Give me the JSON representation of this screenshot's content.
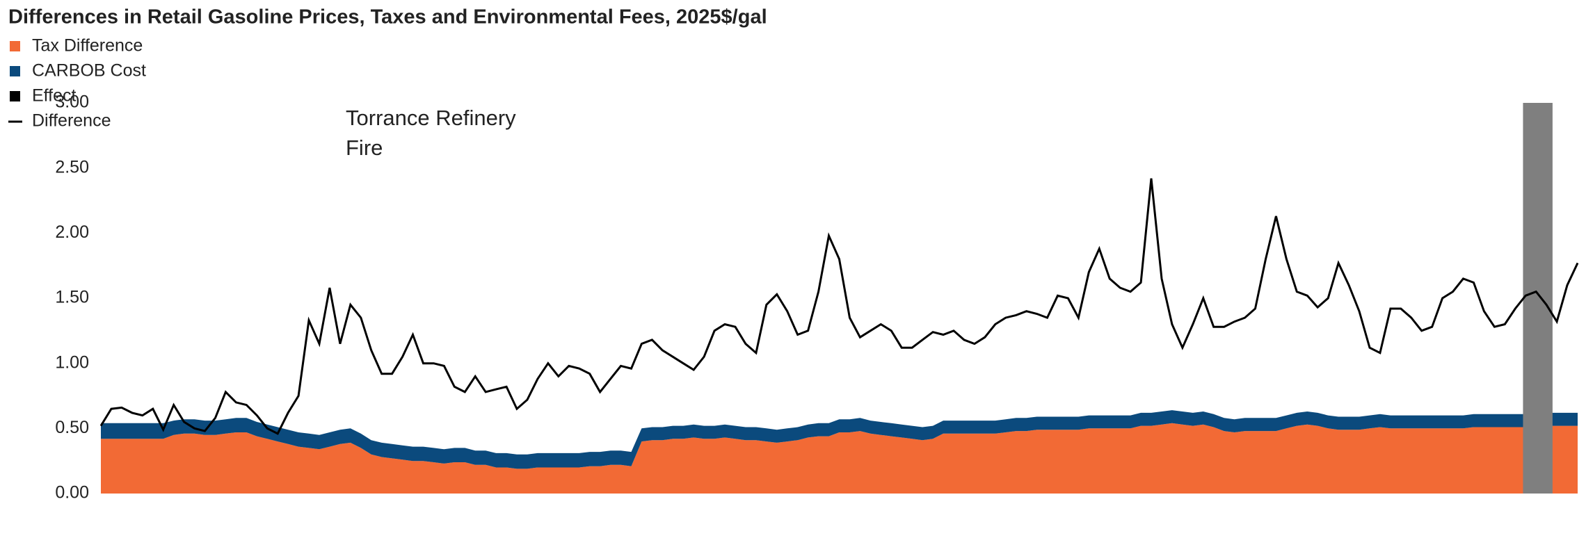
{
  "chart_data": {
    "type": "stacked-area-line",
    "title": "Differences in Retail Gasoline Prices, Taxes and Environmental Fees, 2025$/gal",
    "annotation": [
      "Torrance Refinery",
      "Fire"
    ],
    "ylim": [
      0,
      3
    ],
    "yticks": [
      {
        "value": 0,
        "label": "0.00"
      },
      {
        "value": 0.5,
        "label": "0.50"
      },
      {
        "value": 1,
        "label": "1.00"
      },
      {
        "value": 1.5,
        "label": "1.50"
      },
      {
        "value": 2,
        "label": "2.00"
      },
      {
        "value": 2.5,
        "label": "2.50"
      },
      {
        "value": 3,
        "label": "3.00"
      }
    ],
    "grid": false,
    "series": [
      {
        "name": "Tax Difference",
        "color": "#f26a35",
        "kind": "area",
        "values": [
          0.42,
          0.42,
          0.42,
          0.42,
          0.42,
          0.42,
          0.42,
          0.45,
          0.46,
          0.46,
          0.45,
          0.45,
          0.46,
          0.47,
          0.47,
          0.44,
          0.42,
          0.4,
          0.38,
          0.36,
          0.35,
          0.34,
          0.36,
          0.38,
          0.39,
          0.35,
          0.3,
          0.28,
          0.27,
          0.26,
          0.25,
          0.25,
          0.24,
          0.23,
          0.24,
          0.24,
          0.22,
          0.22,
          0.2,
          0.2,
          0.19,
          0.19,
          0.2,
          0.2,
          0.2,
          0.2,
          0.2,
          0.21,
          0.21,
          0.22,
          0.22,
          0.21,
          0.4,
          0.41,
          0.41,
          0.42,
          0.42,
          0.43,
          0.42,
          0.42,
          0.43,
          0.42,
          0.41,
          0.41,
          0.4,
          0.39,
          0.4,
          0.41,
          0.43,
          0.44,
          0.44,
          0.47,
          0.47,
          0.48,
          0.46,
          0.45,
          0.44,
          0.43,
          0.42,
          0.41,
          0.42,
          0.46,
          0.46,
          0.46,
          0.46,
          0.46,
          0.46,
          0.47,
          0.48,
          0.48,
          0.49,
          0.49,
          0.49,
          0.49,
          0.49,
          0.5,
          0.5,
          0.5,
          0.5,
          0.5,
          0.52,
          0.52,
          0.53,
          0.54,
          0.53,
          0.52,
          0.53,
          0.51,
          0.48,
          0.47,
          0.48,
          0.48,
          0.48,
          0.48,
          0.5,
          0.52,
          0.53,
          0.52,
          0.5,
          0.49,
          0.49,
          0.49,
          0.5,
          0.51,
          0.5,
          0.5,
          0.5,
          0.5,
          0.5,
          0.5,
          0.5,
          0.5,
          0.51,
          0.51,
          0.51,
          0.51,
          0.51,
          0.51,
          0.52,
          0.52,
          0.52,
          0.52,
          0.52
        ]
      },
      {
        "name": "CARBOB Cost",
        "color": "#0b4a7d",
        "kind": "area",
        "values": [
          0.12,
          0.12,
          0.12,
          0.12,
          0.12,
          0.12,
          0.12,
          0.11,
          0.11,
          0.11,
          0.11,
          0.11,
          0.11,
          0.11,
          0.11,
          0.11,
          0.11,
          0.11,
          0.11,
          0.11,
          0.11,
          0.11,
          0.11,
          0.11,
          0.11,
          0.11,
          0.11,
          0.11,
          0.11,
          0.11,
          0.11,
          0.11,
          0.11,
          0.11,
          0.11,
          0.11,
          0.11,
          0.11,
          0.11,
          0.11,
          0.11,
          0.11,
          0.11,
          0.11,
          0.11,
          0.11,
          0.11,
          0.11,
          0.11,
          0.11,
          0.11,
          0.11,
          0.1,
          0.1,
          0.1,
          0.1,
          0.1,
          0.1,
          0.1,
          0.1,
          0.1,
          0.1,
          0.1,
          0.1,
          0.1,
          0.1,
          0.1,
          0.1,
          0.1,
          0.1,
          0.1,
          0.1,
          0.1,
          0.1,
          0.1,
          0.1,
          0.1,
          0.1,
          0.1,
          0.1,
          0.1,
          0.1,
          0.1,
          0.1,
          0.1,
          0.1,
          0.1,
          0.1,
          0.1,
          0.1,
          0.1,
          0.1,
          0.1,
          0.1,
          0.1,
          0.1,
          0.1,
          0.1,
          0.1,
          0.1,
          0.1,
          0.1,
          0.1,
          0.1,
          0.1,
          0.1,
          0.1,
          0.1,
          0.1,
          0.1,
          0.1,
          0.1,
          0.1,
          0.1,
          0.1,
          0.1,
          0.1,
          0.1,
          0.1,
          0.1,
          0.1,
          0.1,
          0.1,
          0.1,
          0.1,
          0.1,
          0.1,
          0.1,
          0.1,
          0.1,
          0.1,
          0.1,
          0.1,
          0.1,
          0.1,
          0.1,
          0.1,
          0.1,
          0.1,
          0.1,
          0.1,
          0.1,
          0.1
        ]
      },
      {
        "name": "Effect",
        "color": "#000000",
        "kind": "legend"
      },
      {
        "name": "Difference",
        "color": "#000000",
        "kind": "line",
        "values": [
          0.52,
          0.65,
          0.66,
          0.62,
          0.6,
          0.65,
          0.49,
          0.68,
          0.55,
          0.5,
          0.48,
          0.58,
          0.78,
          0.7,
          0.68,
          0.6,
          0.5,
          0.46,
          0.62,
          0.75,
          1.33,
          1.15,
          1.58,
          1.15,
          1.45,
          1.35,
          1.1,
          0.92,
          0.92,
          1.05,
          1.22,
          1.0,
          1.0,
          0.98,
          0.82,
          0.78,
          0.9,
          0.78,
          0.8,
          0.82,
          0.65,
          0.72,
          0.88,
          1.0,
          0.9,
          0.98,
          0.96,
          0.92,
          0.78,
          0.88,
          0.98,
          0.96,
          1.15,
          1.18,
          1.1,
          1.05,
          1.0,
          0.95,
          1.05,
          1.25,
          1.3,
          1.28,
          1.15,
          1.08,
          1.45,
          1.53,
          1.4,
          1.22,
          1.25,
          1.55,
          1.98,
          1.8,
          1.35,
          1.2,
          1.25,
          1.3,
          1.25,
          1.12,
          1.12,
          1.18,
          1.24,
          1.22,
          1.25,
          1.18,
          1.15,
          1.2,
          1.3,
          1.35,
          1.37,
          1.4,
          1.38,
          1.35,
          1.52,
          1.5,
          1.35,
          1.7,
          1.88,
          1.65,
          1.58,
          1.55,
          1.62,
          2.42,
          1.65,
          1.3,
          1.12,
          1.3,
          1.5,
          1.28,
          1.28,
          1.32,
          1.35,
          1.42,
          1.8,
          2.13,
          1.8,
          1.55,
          1.52,
          1.43,
          1.5,
          1.77,
          1.6,
          1.4,
          1.12,
          1.08,
          1.42,
          1.42,
          1.35,
          1.25,
          1.28,
          1.5,
          1.55,
          1.65,
          1.62,
          1.4,
          1.28,
          1.3,
          1.42,
          1.52,
          1.55,
          1.45,
          1.32,
          1.6,
          1.77
        ]
      }
    ]
  }
}
